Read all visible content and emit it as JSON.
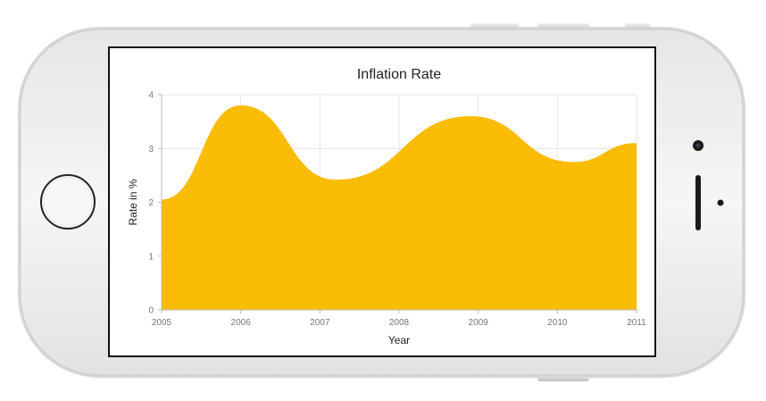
{
  "device": {
    "frame_color": "#f3f3f3",
    "icons": [
      "home-button-icon",
      "front-camera-icon",
      "speaker-grille-icon",
      "sensor-icon",
      "volume-button-icon",
      "power-button-icon"
    ]
  },
  "chart_data": {
    "type": "area",
    "title": "Inflation Rate",
    "xlabel": "Year",
    "ylabel": "Rate in %",
    "x": [
      "2005",
      "2006",
      "2007",
      "2008",
      "2009",
      "2010",
      "2011"
    ],
    "y_ticks": [
      "0",
      "1",
      "2",
      "3",
      "4"
    ],
    "xlim": [
      2005,
      2011
    ],
    "ylim": [
      0,
      4
    ],
    "grid": true,
    "series": [
      {
        "color": "#fbbc05",
        "points": [
          {
            "x": 2005.0,
            "y": 2.05
          },
          {
            "x": 2006.0,
            "y": 3.8
          },
          {
            "x": 2007.2,
            "y": 2.42
          },
          {
            "x": 2008.9,
            "y": 3.6
          },
          {
            "x": 2010.2,
            "y": 2.75
          },
          {
            "x": 2011.0,
            "y": 3.1
          }
        ]
      }
    ]
  }
}
